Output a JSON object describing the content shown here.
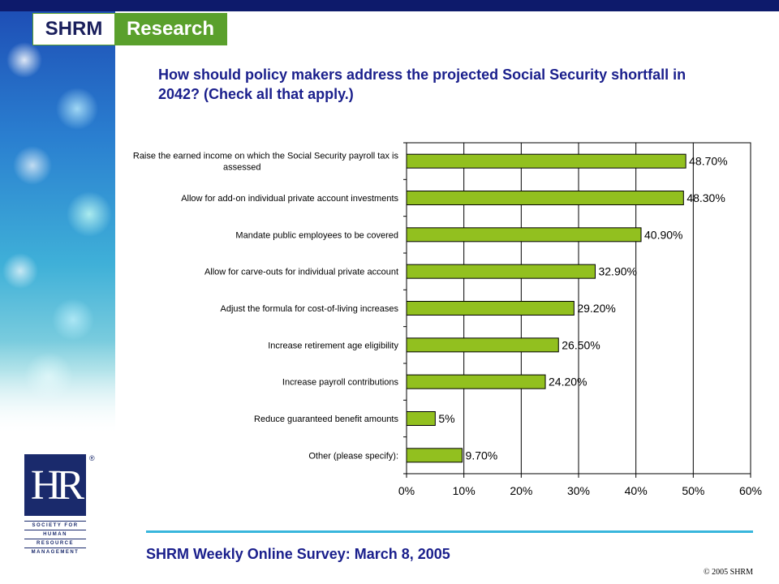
{
  "brand": {
    "left": "SHRM",
    "right": "Research"
  },
  "title": "How should policy makers address the projected Social Security shortfall in 2042? (Check all that apply.)",
  "footer": "SHRM Weekly Online Survey: March 8, 2005",
  "copyright": "© 2005 SHRM",
  "logo": {
    "letters": "HR",
    "reg": "®",
    "lines": [
      "SOCIETY FOR",
      "HUMAN",
      "RESOURCE",
      "MANAGEMENT"
    ]
  },
  "colors": {
    "bar": "#92c01f",
    "title": "#1a1f8c",
    "accent": "#38b6dc"
  },
  "chart_data": {
    "type": "bar",
    "orientation": "horizontal",
    "categories": [
      [
        "Raise the earned income on which the Social Security payroll tax is",
        "assessed"
      ],
      [
        "Allow for add-on individual private account investments"
      ],
      [
        "Mandate public employees to be covered"
      ],
      [
        "Allow for carve-outs for individual private account"
      ],
      [
        "Adjust the formula for cost-of-living increases"
      ],
      [
        "Increase retirement age eligibility"
      ],
      [
        "Increase payroll contributions"
      ],
      [
        "Reduce guaranteed benefit amounts"
      ],
      [
        "Other (please specify):"
      ]
    ],
    "values": [
      48.7,
      48.3,
      40.9,
      32.9,
      29.2,
      26.5,
      24.2,
      5,
      9.7
    ],
    "value_labels": [
      "48.70%",
      "48.30%",
      "40.90%",
      "32.90%",
      "29.20%",
      "26.50%",
      "24.20%",
      "5%",
      "9.70%"
    ],
    "xticks": [
      "0%",
      "10%",
      "20%",
      "30%",
      "40%",
      "50%",
      "60%"
    ],
    "xlim": [
      0,
      60
    ],
    "grid": true
  }
}
